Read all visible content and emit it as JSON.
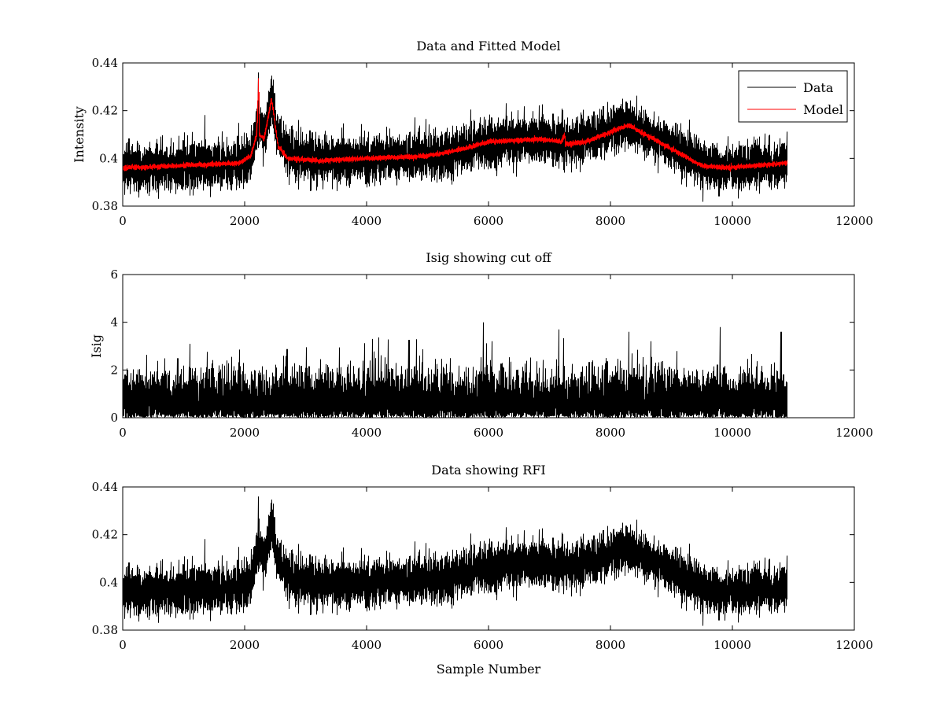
{
  "chart_data": [
    {
      "type": "line",
      "id": "panel-1",
      "title": "Data and Fitted Model",
      "xlabel": "",
      "ylabel": "Intensity",
      "xlim": [
        0,
        12000
      ],
      "ylim": [
        0.38,
        0.44
      ],
      "xticks": [
        0,
        2000,
        4000,
        6000,
        8000,
        10000,
        12000
      ],
      "xtick_labels": [
        "0",
        "2000",
        "4000",
        "6000",
        "8000",
        "10000",
        "12000"
      ],
      "yticks": [
        0.38,
        0.4,
        0.42,
        0.44
      ],
      "ytick_labels": [
        "0.38",
        "0.4",
        "0.42",
        "0.44"
      ],
      "legend": {
        "placement": "top-right",
        "entries": [
          {
            "label": "Data",
            "color": "#000000"
          },
          {
            "label": "Model",
            "color": "#ff0000"
          }
        ]
      },
      "series": [
        {
          "name": "Data",
          "color": "#000000",
          "kind": "noisy",
          "n": 10900,
          "noise_amp": 0.0045,
          "seed": 11,
          "baseline": [
            [
              0,
              0.396
            ],
            [
              1000,
              0.397
            ],
            [
              1900,
              0.398
            ],
            [
              2100,
              0.401
            ],
            [
              2220,
              0.412
            ],
            [
              2250,
              0.414
            ],
            [
              2320,
              0.41
            ],
            [
              2440,
              0.424
            ],
            [
              2550,
              0.41
            ],
            [
              2700,
              0.402
            ],
            [
              3200,
              0.399
            ],
            [
              4000,
              0.4
            ],
            [
              5000,
              0.401
            ],
            [
              5600,
              0.404
            ],
            [
              6000,
              0.407
            ],
            [
              6800,
              0.408
            ],
            [
              7300,
              0.407
            ],
            [
              7800,
              0.41
            ],
            [
              8200,
              0.414
            ],
            [
              8500,
              0.412
            ],
            [
              9000,
              0.405
            ],
            [
              9500,
              0.398
            ],
            [
              9800,
              0.396
            ],
            [
              10400,
              0.397
            ],
            [
              10900,
              0.398
            ]
          ],
          "spikes": [
            [
              2230,
              0.436
            ],
            [
              2450,
              0.431
            ],
            [
              8200,
              0.425
            ],
            [
              7250,
              0.394
            ]
          ]
        },
        {
          "name": "Model",
          "color": "#ff0000",
          "kind": "smooth",
          "n": 10900,
          "noise_amp": 0.0005,
          "seed": 23,
          "baseline": [
            [
              0,
              0.396
            ],
            [
              1000,
              0.397
            ],
            [
              1900,
              0.398
            ],
            [
              2100,
              0.401
            ],
            [
              2200,
              0.41
            ],
            [
              2230,
              0.433
            ],
            [
              2240,
              0.41
            ],
            [
              2320,
              0.408
            ],
            [
              2440,
              0.425
            ],
            [
              2550,
              0.405
            ],
            [
              2700,
              0.4
            ],
            [
              3200,
              0.399
            ],
            [
              4000,
              0.4
            ],
            [
              5000,
              0.401
            ],
            [
              5600,
              0.404
            ],
            [
              6000,
              0.407
            ],
            [
              6800,
              0.408
            ],
            [
              7200,
              0.407
            ],
            [
              7250,
              0.41
            ],
            [
              7260,
              0.406
            ],
            [
              7600,
              0.407
            ],
            [
              8000,
              0.411
            ],
            [
              8300,
              0.414
            ],
            [
              8500,
              0.411
            ],
            [
              9000,
              0.404
            ],
            [
              9500,
              0.397
            ],
            [
              9800,
              0.396
            ],
            [
              10400,
              0.397
            ],
            [
              10900,
              0.398
            ]
          ],
          "spikes": []
        }
      ]
    },
    {
      "type": "line",
      "id": "panel-2",
      "title": "Isig showing cut off",
      "xlabel": "",
      "ylabel": "Isig",
      "xlim": [
        0,
        12000
      ],
      "ylim": [
        0,
        6
      ],
      "xticks": [
        0,
        2000,
        4000,
        6000,
        8000,
        10000,
        12000
      ],
      "xtick_labels": [
        "0",
        "2000",
        "4000",
        "6000",
        "8000",
        "10000",
        "12000"
      ],
      "yticks": [
        0,
        2,
        4,
        6
      ],
      "ytick_labels": [
        "0",
        "2",
        "4",
        "6"
      ],
      "series": [
        {
          "name": "Isig",
          "color": "#000000",
          "kind": "abs-gaussian",
          "n": 10900,
          "scale": 0.85,
          "seed": 37,
          "spikes": [
            [
              5920,
              4.0
            ],
            [
              7150,
              3.7
            ],
            [
              8300,
              3.6
            ],
            [
              9800,
              3.8
            ],
            [
              10800,
              3.6
            ],
            [
              4100,
              3.3
            ],
            [
              1100,
              3.1
            ]
          ]
        }
      ]
    },
    {
      "type": "line",
      "id": "panel-3",
      "title": "Data showing RFI",
      "xlabel": "Sample Number",
      "ylabel": "",
      "xlim": [
        0,
        12000
      ],
      "ylim": [
        0.38,
        0.44
      ],
      "xticks": [
        0,
        2000,
        4000,
        6000,
        8000,
        10000,
        12000
      ],
      "xtick_labels": [
        "0",
        "2000",
        "4000",
        "6000",
        "8000",
        "10000",
        "12000"
      ],
      "yticks": [
        0.38,
        0.4,
        0.42,
        0.44
      ],
      "ytick_labels": [
        "0.38",
        "0.4",
        "0.42",
        "0.44"
      ],
      "series": [
        {
          "name": "Data",
          "color": "#000000",
          "kind": "noisy",
          "n": 10900,
          "noise_amp": 0.0045,
          "seed": 11,
          "baseline": [
            [
              0,
              0.396
            ],
            [
              1000,
              0.397
            ],
            [
              1900,
              0.398
            ],
            [
              2100,
              0.401
            ],
            [
              2220,
              0.412
            ],
            [
              2250,
              0.414
            ],
            [
              2320,
              0.41
            ],
            [
              2440,
              0.424
            ],
            [
              2550,
              0.41
            ],
            [
              2700,
              0.402
            ],
            [
              3200,
              0.399
            ],
            [
              4000,
              0.4
            ],
            [
              5000,
              0.401
            ],
            [
              5600,
              0.404
            ],
            [
              6000,
              0.407
            ],
            [
              6800,
              0.408
            ],
            [
              7300,
              0.407
            ],
            [
              7800,
              0.41
            ],
            [
              8200,
              0.414
            ],
            [
              8500,
              0.412
            ],
            [
              9000,
              0.405
            ],
            [
              9500,
              0.398
            ],
            [
              9800,
              0.396
            ],
            [
              10400,
              0.397
            ],
            [
              10900,
              0.398
            ]
          ],
          "spikes": [
            [
              2230,
              0.436
            ],
            [
              2450,
              0.431
            ],
            [
              8200,
              0.425
            ],
            [
              9880,
              0.384
            ]
          ]
        }
      ]
    }
  ]
}
